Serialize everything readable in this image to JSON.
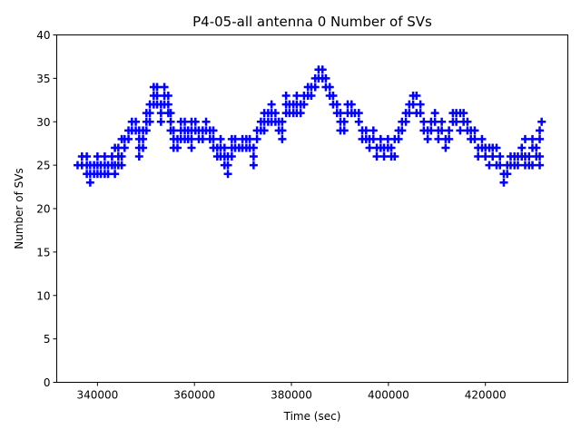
{
  "chart_data": {
    "type": "scatter",
    "title": "P4-05-all antenna 0 Number of SVs",
    "xlabel": "Time (sec)",
    "ylabel": "Number of SVs",
    "xlim": [
      331600,
      437000
    ],
    "ylim": [
      0,
      40
    ],
    "xticks": [
      340000,
      360000,
      380000,
      400000,
      420000
    ],
    "xtick_labels": [
      "340000",
      "360000",
      "380000",
      "400000",
      "420000"
    ],
    "yticks": [
      0,
      5,
      10,
      15,
      20,
      25,
      30,
      35,
      40
    ],
    "ytick_labels": [
      "0",
      "5",
      "10",
      "15",
      "20",
      "25",
      "30",
      "35",
      "40"
    ],
    "marker": "+",
    "color": "#0000ff",
    "grid": false,
    "points": [
      [
        335900,
        25
      ],
      [
        336800,
        25
      ],
      [
        336800,
        26
      ],
      [
        337800,
        25
      ],
      [
        337800,
        26
      ],
      [
        337800,
        24
      ],
      [
        338500,
        23
      ],
      [
        338500,
        24
      ],
      [
        338500,
        25
      ],
      [
        339300,
        24
      ],
      [
        339300,
        25
      ],
      [
        340000,
        24
      ],
      [
        340000,
        25
      ],
      [
        340000,
        26
      ],
      [
        340700,
        24
      ],
      [
        340700,
        25
      ],
      [
        341500,
        25
      ],
      [
        341500,
        26
      ],
      [
        341500,
        24
      ],
      [
        342200,
        25
      ],
      [
        342200,
        24
      ],
      [
        343000,
        25
      ],
      [
        343000,
        26
      ],
      [
        343600,
        24
      ],
      [
        343600,
        25
      ],
      [
        343600,
        27
      ],
      [
        344300,
        25
      ],
      [
        344300,
        26
      ],
      [
        344300,
        27
      ],
      [
        345000,
        26
      ],
      [
        345000,
        25
      ],
      [
        345000,
        28
      ],
      [
        345600,
        27
      ],
      [
        345600,
        28
      ],
      [
        346400,
        28
      ],
      [
        346400,
        29
      ],
      [
        347100,
        29
      ],
      [
        347100,
        30
      ],
      [
        347900,
        30
      ],
      [
        347900,
        29
      ],
      [
        348600,
        26
      ],
      [
        348600,
        27
      ],
      [
        348600,
        28
      ],
      [
        348600,
        29
      ],
      [
        349400,
        28
      ],
      [
        349400,
        29
      ],
      [
        349400,
        27
      ],
      [
        350100,
        30
      ],
      [
        350100,
        31
      ],
      [
        350100,
        29
      ],
      [
        350800,
        31
      ],
      [
        350800,
        32
      ],
      [
        350800,
        30
      ],
      [
        351600,
        33
      ],
      [
        351600,
        34
      ],
      [
        351600,
        32
      ],
      [
        352300,
        34
      ],
      [
        352300,
        33
      ],
      [
        352300,
        32
      ],
      [
        353100,
        32
      ],
      [
        353100,
        31
      ],
      [
        353100,
        30
      ],
      [
        353800,
        33
      ],
      [
        353800,
        34
      ],
      [
        353800,
        32
      ],
      [
        354600,
        33
      ],
      [
        354600,
        32
      ],
      [
        354600,
        31
      ],
      [
        355100,
        31
      ],
      [
        355100,
        30
      ],
      [
        355100,
        29
      ],
      [
        355700,
        28
      ],
      [
        355700,
        27
      ],
      [
        355700,
        29
      ],
      [
        356500,
        28
      ],
      [
        356500,
        27
      ],
      [
        357200,
        29
      ],
      [
        357200,
        28
      ],
      [
        357200,
        30
      ],
      [
        358000,
        30
      ],
      [
        358000,
        29
      ],
      [
        358000,
        28
      ],
      [
        358700,
        29
      ],
      [
        358700,
        28
      ],
      [
        359400,
        28
      ],
      [
        359400,
        29
      ],
      [
        359400,
        30
      ],
      [
        359400,
        27
      ],
      [
        360200,
        30
      ],
      [
        360200,
        29
      ],
      [
        360900,
        29
      ],
      [
        360900,
        28
      ],
      [
        361700,
        29
      ],
      [
        361700,
        28
      ],
      [
        362400,
        29
      ],
      [
        362400,
        30
      ],
      [
        363200,
        29
      ],
      [
        363200,
        28
      ],
      [
        363900,
        27
      ],
      [
        363900,
        28
      ],
      [
        363900,
        29
      ],
      [
        364700,
        26
      ],
      [
        364700,
        27
      ],
      [
        365400,
        26
      ],
      [
        365400,
        27
      ],
      [
        365400,
        28
      ],
      [
        366200,
        25
      ],
      [
        366200,
        26
      ],
      [
        366200,
        27
      ],
      [
        366900,
        24
      ],
      [
        366900,
        25
      ],
      [
        366900,
        26
      ],
      [
        367700,
        26
      ],
      [
        367700,
        27
      ],
      [
        367700,
        28
      ],
      [
        368400,
        27
      ],
      [
        368400,
        28
      ],
      [
        369200,
        27
      ],
      [
        369900,
        27
      ],
      [
        369900,
        28
      ],
      [
        370700,
        28
      ],
      [
        370700,
        27
      ],
      [
        371400,
        27
      ],
      [
        371400,
        28
      ],
      [
        372200,
        25
      ],
      [
        372200,
        26
      ],
      [
        372200,
        27
      ],
      [
        372900,
        28
      ],
      [
        372900,
        29
      ],
      [
        373700,
        29
      ],
      [
        373700,
        30
      ],
      [
        374400,
        30
      ],
      [
        374400,
        31
      ],
      [
        374400,
        29
      ],
      [
        375200,
        30
      ],
      [
        375200,
        31
      ],
      [
        375900,
        31
      ],
      [
        375900,
        32
      ],
      [
        375900,
        30
      ],
      [
        376700,
        31
      ],
      [
        376700,
        30
      ],
      [
        377400,
        29
      ],
      [
        377400,
        30
      ],
      [
        378100,
        28
      ],
      [
        378100,
        29
      ],
      [
        378100,
        30
      ],
      [
        378900,
        31
      ],
      [
        378900,
        32
      ],
      [
        378900,
        33
      ],
      [
        379600,
        31
      ],
      [
        379600,
        32
      ],
      [
        380400,
        31
      ],
      [
        380400,
        32
      ],
      [
        381100,
        32
      ],
      [
        381100,
        33
      ],
      [
        381100,
        31
      ],
      [
        381900,
        32
      ],
      [
        381900,
        31
      ],
      [
        382600,
        33
      ],
      [
        382600,
        32
      ],
      [
        383400,
        33
      ],
      [
        383400,
        34
      ],
      [
        384100,
        33
      ],
      [
        384100,
        34
      ],
      [
        384900,
        34
      ],
      [
        384900,
        35
      ],
      [
        385600,
        35
      ],
      [
        385600,
        36
      ],
      [
        386400,
        36
      ],
      [
        386400,
        35
      ],
      [
        387100,
        35
      ],
      [
        387100,
        34
      ],
      [
        387900,
        34
      ],
      [
        387900,
        33
      ],
      [
        388600,
        33
      ],
      [
        388600,
        32
      ],
      [
        389400,
        31
      ],
      [
        389400,
        32
      ],
      [
        390100,
        30
      ],
      [
        390100,
        31
      ],
      [
        390100,
        29
      ],
      [
        390900,
        29
      ],
      [
        390900,
        30
      ],
      [
        391600,
        31
      ],
      [
        391600,
        32
      ],
      [
        392400,
        31
      ],
      [
        392400,
        32
      ],
      [
        393100,
        31
      ],
      [
        393900,
        31
      ],
      [
        393900,
        30
      ],
      [
        394600,
        29
      ],
      [
        394600,
        28
      ],
      [
        395400,
        29
      ],
      [
        395400,
        28
      ],
      [
        396100,
        27
      ],
      [
        396100,
        28
      ],
      [
        396900,
        29
      ],
      [
        396900,
        28
      ],
      [
        397600,
        27
      ],
      [
        397600,
        26
      ],
      [
        398400,
        27
      ],
      [
        398400,
        28
      ],
      [
        399100,
        27
      ],
      [
        399100,
        26
      ],
      [
        399900,
        28
      ],
      [
        399900,
        27
      ],
      [
        400600,
        26
      ],
      [
        400600,
        27
      ],
      [
        401300,
        28
      ],
      [
        401300,
        26
      ],
      [
        402100,
        29
      ],
      [
        402100,
        28
      ],
      [
        402800,
        30
      ],
      [
        402800,
        29
      ],
      [
        403600,
        31
      ],
      [
        403600,
        30
      ],
      [
        404300,
        31
      ],
      [
        404300,
        32
      ],
      [
        405100,
        33
      ],
      [
        405100,
        32
      ],
      [
        405800,
        33
      ],
      [
        405800,
        31
      ],
      [
        406600,
        32
      ],
      [
        406600,
        31
      ],
      [
        407300,
        29
      ],
      [
        407300,
        30
      ],
      [
        408100,
        28
      ],
      [
        408100,
        29
      ],
      [
        408800,
        29
      ],
      [
        408800,
        30
      ],
      [
        409600,
        31
      ],
      [
        409600,
        30
      ],
      [
        410300,
        29
      ],
      [
        410300,
        28
      ],
      [
        411000,
        29
      ],
      [
        411000,
        30
      ],
      [
        411800,
        27
      ],
      [
        411800,
        28
      ],
      [
        412500,
        29
      ],
      [
        412500,
        28
      ],
      [
        413300,
        30
      ],
      [
        413300,
        31
      ],
      [
        414000,
        31
      ],
      [
        414000,
        30
      ],
      [
        414800,
        29
      ],
      [
        414800,
        31
      ],
      [
        415500,
        30
      ],
      [
        415500,
        31
      ],
      [
        416300,
        29
      ],
      [
        416300,
        30
      ],
      [
        417000,
        28
      ],
      [
        417000,
        29
      ],
      [
        417800,
        29
      ],
      [
        417800,
        28
      ],
      [
        418500,
        26
      ],
      [
        418500,
        27
      ],
      [
        419300,
        27
      ],
      [
        419300,
        28
      ],
      [
        420000,
        26
      ],
      [
        420000,
        27
      ],
      [
        420800,
        25
      ],
      [
        420800,
        27
      ],
      [
        421500,
        27
      ],
      [
        421500,
        26
      ],
      [
        422300,
        27
      ],
      [
        422300,
        25
      ],
      [
        423000,
        26
      ],
      [
        423000,
        25
      ],
      [
        423800,
        23
      ],
      [
        423800,
        24
      ],
      [
        424500,
        24
      ],
      [
        424500,
        25
      ],
      [
        425200,
        25
      ],
      [
        425200,
        26
      ],
      [
        426000,
        26
      ],
      [
        426000,
        25
      ],
      [
        426700,
        25
      ],
      [
        426700,
        26
      ],
      [
        427500,
        26
      ],
      [
        427500,
        27
      ],
      [
        428200,
        28
      ],
      [
        428200,
        26
      ],
      [
        428200,
        25
      ],
      [
        429000,
        25
      ],
      [
        429000,
        26
      ],
      [
        429700,
        27
      ],
      [
        429700,
        28
      ],
      [
        429700,
        25
      ],
      [
        430500,
        26
      ],
      [
        430500,
        27
      ],
      [
        431200,
        28
      ],
      [
        431200,
        29
      ],
      [
        431200,
        26
      ],
      [
        431600,
        30
      ],
      [
        431200,
        25
      ]
    ]
  }
}
